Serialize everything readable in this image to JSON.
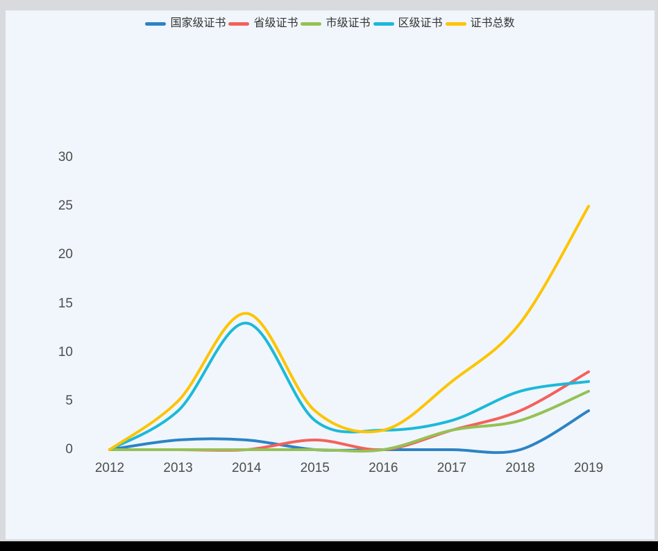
{
  "page": {
    "frame_background": "#d9dadd",
    "bottom_bar_color": "#000000",
    "card_background": "#f0f6fb",
    "tick_label_color": "#4d4d4d",
    "legend_label_color": "#333333"
  },
  "chart_data": {
    "type": "line",
    "smooth": true,
    "title": "",
    "xlabel": "",
    "ylabel": "",
    "x": [
      "2012",
      "2013",
      "2014",
      "2015",
      "2016",
      "2017",
      "2018",
      "2019"
    ],
    "series": [
      {
        "name": "国家级证书",
        "color": "#2c83c5",
        "values": [
          0,
          1,
          1,
          0,
          0,
          0,
          0,
          4
        ]
      },
      {
        "name": "省级证书",
        "color": "#f4615c",
        "values": [
          0,
          0,
          0,
          1,
          0,
          2,
          4,
          8
        ]
      },
      {
        "name": "市级证书",
        "color": "#95c155",
        "values": [
          0,
          0,
          0,
          0,
          0,
          2,
          3,
          6
        ]
      },
      {
        "name": "区级证书",
        "color": "#1cb9d8",
        "values": [
          0,
          4,
          13,
          3,
          2,
          3,
          6,
          7
        ]
      },
      {
        "name": "证书总数",
        "color": "#fdc400",
        "values": [
          0,
          5,
          14,
          4,
          2,
          7,
          13,
          25
        ]
      }
    ],
    "yticks": [
      0,
      5,
      10,
      15,
      20,
      25,
      30
    ],
    "ylim": [
      0,
      30
    ],
    "grid": false,
    "axis_lines": false,
    "legend_position": "top"
  }
}
